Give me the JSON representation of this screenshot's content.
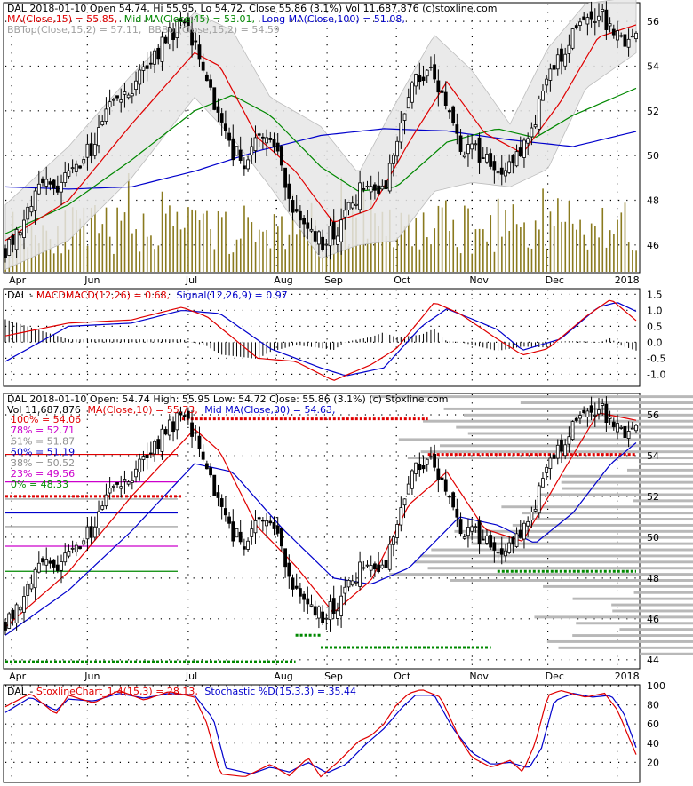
{
  "colors": {
    "price": "#000000",
    "ma_short": "#e00000",
    "ma_mid": "#008800",
    "ma_long": "#0000cc",
    "bollinger_fill": "#e6e6e6",
    "volume": "#8a7a1e",
    "macd_hist": "#000000",
    "fib_100": "#e00000",
    "fib_78": "#cc00cc",
    "fib_61": "#909090",
    "fib_50": "#0000cc",
    "fib_38": "#909090",
    "fib_23": "#cc00cc",
    "fib_0": "#008800",
    "profile": "#b8b8b8",
    "stoch_k": "#e00000",
    "stoch_d": "#0000cc"
  },
  "chart_data": [
    {
      "type": "candlestick",
      "legend": {
        "line1": "DAL  2018-01-10 Open 54.74, Hi 55.95, Lo 54.72, Close 55.86 (3.1%) Vol 11,687,876  (c)stoxline.com",
        "ma15": "MA(Close,15) = 55.85,",
        "ma45": "Mid MA(Close,45) = 53.01,",
        "ma100": "Long MA(Close,100) = 51.08,",
        "bbtop": "BBTop(Close,15,2) = 57.11,",
        "bbbot": "BBBot(Close,15,2) = 54.59"
      },
      "yticks": [
        46,
        48,
        50,
        52,
        54,
        56
      ],
      "ylim": [
        44.8,
        56.8
      ],
      "x_labels": [
        "Apr",
        "Jun",
        "Jul",
        "Aug",
        "Sep",
        "Oct",
        "Nov",
        "Dec",
        "2018"
      ],
      "grid": true,
      "close_path_points": [
        [
          0,
          45.9
        ],
        [
          0.02,
          46.8
        ],
        [
          0.04,
          47.9
        ],
        [
          0.06,
          48.6
        ],
        [
          0.08,
          48.3
        ],
        [
          0.1,
          49.0
        ],
        [
          0.12,
          49.5
        ],
        [
          0.14,
          50.6
        ],
        [
          0.16,
          52.0
        ],
        [
          0.18,
          52.9
        ],
        [
          0.2,
          52.7
        ],
        [
          0.22,
          53.8
        ],
        [
          0.24,
          54.6
        ],
        [
          0.26,
          55.5
        ],
        [
          0.28,
          55.8
        ],
        [
          0.3,
          55.2
        ],
        [
          0.32,
          53.4
        ],
        [
          0.34,
          51.6
        ],
        [
          0.36,
          50.2
        ],
        [
          0.38,
          49.8
        ],
        [
          0.4,
          51.3
        ],
        [
          0.42,
          50.5
        ],
        [
          0.44,
          49.3
        ],
        [
          0.46,
          47.4
        ],
        [
          0.48,
          46.8
        ],
        [
          0.5,
          46.2
        ],
        [
          0.52,
          46.5
        ],
        [
          0.54,
          47.5
        ],
        [
          0.56,
          48.3
        ],
        [
          0.58,
          48.8
        ],
        [
          0.6,
          48.5
        ],
        [
          0.62,
          50.8
        ],
        [
          0.64,
          53.0
        ],
        [
          0.66,
          53.8
        ],
        [
          0.68,
          53.5
        ],
        [
          0.7,
          52.6
        ],
        [
          0.72,
          50.6
        ],
        [
          0.74,
          50.2
        ],
        [
          0.76,
          49.9
        ],
        [
          0.78,
          49.4
        ],
        [
          0.8,
          49.7
        ],
        [
          0.82,
          50.4
        ],
        [
          0.84,
          51.8
        ],
        [
          0.86,
          53.3
        ],
        [
          0.88,
          54.4
        ],
        [
          0.9,
          55.6
        ],
        [
          0.92,
          56.1
        ],
        [
          0.94,
          56.2
        ],
        [
          0.96,
          55.9
        ],
        [
          0.98,
          55.2
        ],
        [
          1.0,
          55.86
        ]
      ],
      "ma15_points": [
        [
          0,
          46.2
        ],
        [
          0.1,
          48.0
        ],
        [
          0.2,
          51.4
        ],
        [
          0.3,
          54.6
        ],
        [
          0.34,
          54.0
        ],
        [
          0.4,
          50.8
        ],
        [
          0.46,
          49.3
        ],
        [
          0.52,
          47.0
        ],
        [
          0.58,
          47.6
        ],
        [
          0.64,
          50.6
        ],
        [
          0.7,
          53.3
        ],
        [
          0.76,
          51.0
        ],
        [
          0.82,
          50.1
        ],
        [
          0.88,
          52.4
        ],
        [
          0.94,
          55.3
        ],
        [
          1.0,
          55.85
        ]
      ],
      "ma45_points": [
        [
          0,
          46.5
        ],
        [
          0.1,
          47.8
        ],
        [
          0.2,
          49.8
        ],
        [
          0.3,
          52.0
        ],
        [
          0.36,
          52.7
        ],
        [
          0.42,
          51.8
        ],
        [
          0.5,
          49.5
        ],
        [
          0.56,
          48.4
        ],
        [
          0.62,
          48.6
        ],
        [
          0.7,
          50.6
        ],
        [
          0.78,
          51.2
        ],
        [
          0.84,
          50.8
        ],
        [
          0.9,
          51.8
        ],
        [
          1.0,
          53.01
        ]
      ],
      "ma100_points": [
        [
          0,
          48.6
        ],
        [
          0.1,
          48.5
        ],
        [
          0.2,
          48.6
        ],
        [
          0.3,
          49.3
        ],
        [
          0.4,
          50.2
        ],
        [
          0.5,
          50.9
        ],
        [
          0.6,
          51.2
        ],
        [
          0.7,
          51.1
        ],
        [
          0.8,
          50.7
        ],
        [
          0.9,
          50.4
        ],
        [
          1.0,
          51.08
        ]
      ],
      "bb_upper_points": [
        [
          0,
          47.8
        ],
        [
          0.1,
          50.4
        ],
        [
          0.2,
          53.6
        ],
        [
          0.3,
          56.4
        ],
        [
          0.36,
          55.6
        ],
        [
          0.42,
          52.6
        ],
        [
          0.5,
          51.3
        ],
        [
          0.56,
          49.2
        ],
        [
          0.62,
          52.4
        ],
        [
          0.68,
          55.4
        ],
        [
          0.74,
          53.8
        ],
        [
          0.8,
          51.4
        ],
        [
          0.86,
          54.8
        ],
        [
          0.92,
          56.8
        ],
        [
          1.0,
          57.11
        ]
      ],
      "bb_lower_points": [
        [
          0,
          44.9
        ],
        [
          0.1,
          46.2
        ],
        [
          0.2,
          49.0
        ],
        [
          0.3,
          52.6
        ],
        [
          0.36,
          50.8
        ],
        [
          0.42,
          48.6
        ],
        [
          0.5,
          45.4
        ],
        [
          0.56,
          46.0
        ],
        [
          0.62,
          46.2
        ],
        [
          0.68,
          48.4
        ],
        [
          0.74,
          48.8
        ],
        [
          0.8,
          48.6
        ],
        [
          0.86,
          49.4
        ],
        [
          0.92,
          53.0
        ],
        [
          1.0,
          54.59
        ]
      ]
    },
    {
      "type": "line",
      "legend": {
        "name": "DAL - ",
        "macd": "MACDMACD(12,26) = 0.68,",
        "signal": "Signal(12,26,9) = 0.97"
      },
      "yticks": [
        1.5,
        1.0,
        0.5,
        0.0,
        -0.5,
        -1.0
      ],
      "tick_labels": [
        "1.5",
        "1.0",
        "0.5",
        "0.0",
        "-0.5",
        "-1.0"
      ],
      "ylim": [
        -1.35,
        1.65
      ],
      "series": [
        {
          "key": "macd",
          "points": [
            [
              0,
              0.2
            ],
            [
              0.1,
              0.6
            ],
            [
              0.2,
              0.7
            ],
            [
              0.28,
              1.1
            ],
            [
              0.32,
              0.8
            ],
            [
              0.4,
              -0.5
            ],
            [
              0.46,
              -0.6
            ],
            [
              0.52,
              -1.2
            ],
            [
              0.58,
              -0.7
            ],
            [
              0.62,
              -0.2
            ],
            [
              0.68,
              1.25
            ],
            [
              0.72,
              0.9
            ],
            [
              0.78,
              0.1
            ],
            [
              0.82,
              -0.4
            ],
            [
              0.86,
              -0.2
            ],
            [
              0.92,
              0.8
            ],
            [
              0.96,
              1.35
            ],
            [
              1.0,
              0.68
            ]
          ]
        },
        {
          "key": "signal",
          "points": [
            [
              0,
              -0.6
            ],
            [
              0.1,
              0.5
            ],
            [
              0.2,
              0.6
            ],
            [
              0.28,
              1.0
            ],
            [
              0.34,
              0.9
            ],
            [
              0.42,
              -0.2
            ],
            [
              0.5,
              -0.8
            ],
            [
              0.54,
              -1.05
            ],
            [
              0.6,
              -0.8
            ],
            [
              0.66,
              0.5
            ],
            [
              0.7,
              1.05
            ],
            [
              0.78,
              0.4
            ],
            [
              0.82,
              -0.25
            ],
            [
              0.88,
              0.1
            ],
            [
              0.94,
              1.1
            ],
            [
              0.97,
              1.25
            ],
            [
              1.0,
              0.97
            ]
          ]
        }
      ]
    },
    {
      "type": "candlestick",
      "legend": {
        "line1": "DAL  2018-01-10 Open: 54.74  High: 55.95  Low: 54.72  Close: 55.86 (3.1%) (c) Stoxline.com",
        "line2": "Vol 11,687,876",
        "ma10": "MA(Close,10) = 55.73,",
        "ma30": "Mid MA(Close,30) = 54.63,"
      },
      "fib_levels": [
        {
          "key": "fib_100",
          "label": "100% = 54.06",
          "value": 54.06
        },
        {
          "key": "fib_78",
          "label": "78% = 52.71",
          "value": 52.71
        },
        {
          "key": "fib_61",
          "label": "61% = 51.87",
          "value": 51.87
        },
        {
          "key": "fib_50",
          "label": "50% = 51.19",
          "value": 51.19
        },
        {
          "key": "fib_38",
          "label": "38% = 50.52",
          "value": 50.52
        },
        {
          "key": "fib_23",
          "label": "23% = 49.56",
          "value": 49.56
        },
        {
          "key": "fib_0",
          "label": "0% = 48.33",
          "value": 48.33
        }
      ],
      "yticks": [
        44,
        46,
        48,
        50,
        52,
        54,
        56
      ],
      "ylim": [
        43.6,
        57.0
      ],
      "x_labels": [
        "Apr",
        "Jun",
        "Jul",
        "Aug",
        "Sep",
        "Oct",
        "Nov",
        "Dec",
        "2018"
      ],
      "ma10_points": [
        [
          0,
          45.6
        ],
        [
          0.1,
          48.3
        ],
        [
          0.2,
          52.0
        ],
        [
          0.3,
          55.3
        ],
        [
          0.34,
          54.2
        ],
        [
          0.4,
          50.5
        ],
        [
          0.46,
          48.6
        ],
        [
          0.52,
          46.3
        ],
        [
          0.58,
          47.9
        ],
        [
          0.64,
          51.6
        ],
        [
          0.7,
          53.2
        ],
        [
          0.76,
          50.4
        ],
        [
          0.82,
          49.8
        ],
        [
          0.88,
          53.0
        ],
        [
          0.94,
          56.1
        ],
        [
          1.0,
          55.73
        ]
      ],
      "ma30_points": [
        [
          0,
          45.2
        ],
        [
          0.1,
          47.4
        ],
        [
          0.2,
          50.3
        ],
        [
          0.3,
          53.6
        ],
        [
          0.36,
          53.2
        ],
        [
          0.44,
          50.4
        ],
        [
          0.52,
          48.0
        ],
        [
          0.58,
          47.7
        ],
        [
          0.64,
          48.5
        ],
        [
          0.72,
          51.0
        ],
        [
          0.78,
          50.6
        ],
        [
          0.84,
          49.7
        ],
        [
          0.9,
          51.2
        ],
        [
          0.96,
          53.6
        ],
        [
          1.0,
          54.63
        ]
      ]
    },
    {
      "type": "line",
      "legend": {
        "name": "DAL - ",
        "k": "StoxlineChart_1-4(15,3) = 28.13,",
        "d": "Stochastic %D(15,3,3) = 35.44"
      },
      "yticks": [
        100,
        80,
        60,
        40,
        20
      ],
      "ylim": [
        0,
        100
      ],
      "series": [
        {
          "key": "k",
          "points": [
            [
              0,
              78
            ],
            [
              0.04,
              92
            ],
            [
              0.08,
              70
            ],
            [
              0.1,
              90
            ],
            [
              0.14,
              82
            ],
            [
              0.18,
              95
            ],
            [
              0.22,
              85
            ],
            [
              0.26,
              94
            ],
            [
              0.3,
              88
            ],
            [
              0.32,
              60
            ],
            [
              0.34,
              8
            ],
            [
              0.38,
              5
            ],
            [
              0.42,
              18
            ],
            [
              0.45,
              6
            ],
            [
              0.48,
              25
            ],
            [
              0.5,
              5
            ],
            [
              0.53,
              22
            ],
            [
              0.56,
              42
            ],
            [
              0.58,
              48
            ],
            [
              0.6,
              60
            ],
            [
              0.62,
              80
            ],
            [
              0.64,
              92
            ],
            [
              0.66,
              96
            ],
            [
              0.69,
              88
            ],
            [
              0.72,
              45
            ],
            [
              0.74,
              25
            ],
            [
              0.77,
              15
            ],
            [
              0.8,
              22
            ],
            [
              0.82,
              10
            ],
            [
              0.84,
              40
            ],
            [
              0.86,
              90
            ],
            [
              0.88,
              95
            ],
            [
              0.92,
              88
            ],
            [
              0.95,
              92
            ],
            [
              0.97,
              75
            ],
            [
              1.0,
              28.13
            ]
          ]
        },
        {
          "key": "d",
          "points": [
            [
              0,
              72
            ],
            [
              0.04,
              88
            ],
            [
              0.08,
              74
            ],
            [
              0.1,
              86
            ],
            [
              0.14,
              84
            ],
            [
              0.18,
              92
            ],
            [
              0.22,
              87
            ],
            [
              0.26,
              92
            ],
            [
              0.3,
              90
            ],
            [
              0.33,
              65
            ],
            [
              0.35,
              14
            ],
            [
              0.39,
              8
            ],
            [
              0.42,
              15
            ],
            [
              0.45,
              10
            ],
            [
              0.48,
              20
            ],
            [
              0.51,
              9
            ],
            [
              0.54,
              18
            ],
            [
              0.57,
              38
            ],
            [
              0.6,
              55
            ],
            [
              0.63,
              78
            ],
            [
              0.65,
              90
            ],
            [
              0.68,
              90
            ],
            [
              0.71,
              55
            ],
            [
              0.74,
              30
            ],
            [
              0.77,
              18
            ],
            [
              0.8,
              20
            ],
            [
              0.83,
              14
            ],
            [
              0.85,
              35
            ],
            [
              0.87,
              84
            ],
            [
              0.9,
              92
            ],
            [
              0.93,
              88
            ],
            [
              0.96,
              90
            ],
            [
              0.98,
              72
            ],
            [
              1.0,
              35.44
            ]
          ]
        }
      ]
    }
  ]
}
